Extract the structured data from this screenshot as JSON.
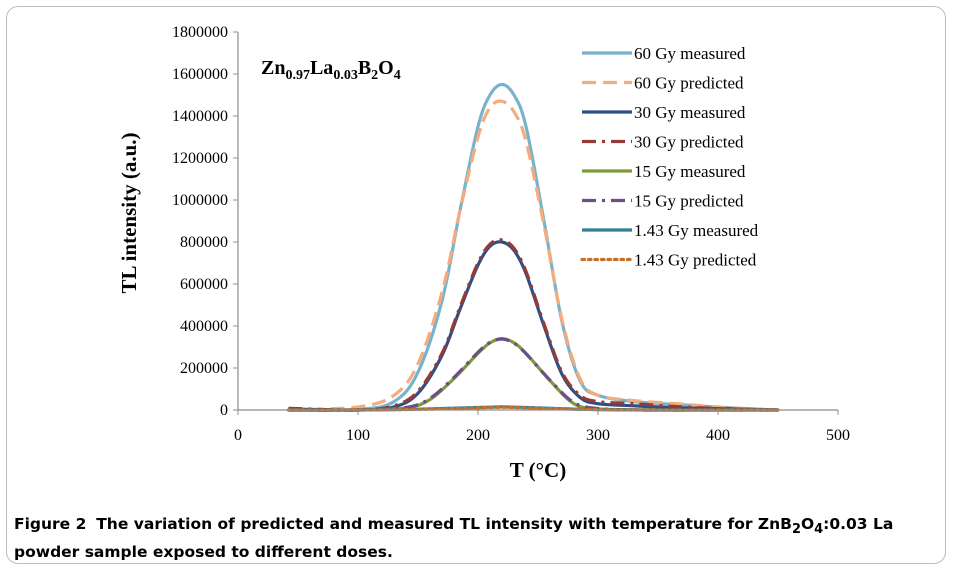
{
  "figure": {
    "label": "Figure 2",
    "caption_pre": "The variation of predicted and measured TL intensity with temperature for ZnB",
    "caption_sub1": "2",
    "caption_mid": "O",
    "caption_sub2": "4",
    "caption_post": ":0.03 La powder sample exposed to different doses."
  },
  "chart_data": {
    "type": "line",
    "title": "",
    "annotation": {
      "parts": [
        {
          "text": "Zn",
          "sub": false
        },
        {
          "text": "0.97",
          "sub": true
        },
        {
          "text": "La",
          "sub": false
        },
        {
          "text": "0.03",
          "sub": true
        },
        {
          "text": "B",
          "sub": false
        },
        {
          "text": "2",
          "sub": true
        },
        {
          "text": "O",
          "sub": false
        },
        {
          "text": "4",
          "sub": true
        }
      ]
    },
    "xlabel": "T (°C)",
    "ylabel": "TL intensity (a.u.)",
    "xlim": [
      0,
      500
    ],
    "ylim": [
      0,
      1800000
    ],
    "xticks": [
      "0",
      "100",
      "200",
      "300",
      "400",
      "500"
    ],
    "yticks": [
      "0",
      "200000",
      "400000",
      "600000",
      "800000",
      "1000000",
      "1200000",
      "1400000",
      "1600000",
      "1800000"
    ],
    "legend_position": "top-right",
    "grid": false,
    "series": [
      {
        "name": "60 Gy measured",
        "color": "#78b3cc",
        "dash": "solid",
        "x": [
          42,
          100,
          130,
          150,
          170,
          185,
          200,
          210,
          220,
          230,
          240,
          255,
          270,
          285,
          300,
          330,
          370,
          410,
          450
        ],
        "y": [
          0,
          3000,
          40000,
          180000,
          520000,
          950000,
          1350000,
          1500000,
          1550000,
          1500000,
          1350000,
          900000,
          420000,
          140000,
          70000,
          40000,
          25000,
          10000,
          0
        ]
      },
      {
        "name": "60 Gy predicted",
        "color": "#f5ab7c",
        "dash": "dashed",
        "x": [
          42,
          100,
          130,
          150,
          170,
          185,
          200,
          210,
          220,
          230,
          240,
          255,
          270,
          285,
          300,
          330,
          370,
          410,
          450
        ],
        "y": [
          0,
          15000,
          70000,
          220000,
          560000,
          950000,
          1300000,
          1440000,
          1470000,
          1420000,
          1280000,
          880000,
          430000,
          150000,
          70000,
          45000,
          28000,
          10000,
          0
        ]
      },
      {
        "name": "30 Gy measured",
        "color": "#2e4f86",
        "dash": "solid",
        "x": [
          42,
          100,
          130,
          150,
          170,
          185,
          200,
          210,
          220,
          230,
          240,
          255,
          270,
          285,
          300,
          330,
          370,
          410,
          450
        ],
        "y": [
          5000,
          0,
          15000,
          80000,
          260000,
          480000,
          690000,
          780000,
          800000,
          760000,
          650000,
          400000,
          170000,
          60000,
          30000,
          20000,
          10000,
          5000,
          0
        ]
      },
      {
        "name": "30 Gy predicted",
        "color": "#963a36",
        "dash": "dashdot",
        "x": [
          42,
          100,
          130,
          150,
          170,
          185,
          200,
          210,
          220,
          230,
          240,
          255,
          270,
          285,
          300,
          330,
          370,
          410,
          450
        ],
        "y": [
          8000,
          0,
          20000,
          90000,
          270000,
          490000,
          700000,
          790000,
          810000,
          770000,
          660000,
          410000,
          180000,
          70000,
          40000,
          30000,
          15000,
          5000,
          0
        ]
      },
      {
        "name": "15 Gy measured",
        "color": "#7c9c3b",
        "dash": "solid",
        "x": [
          42,
          100,
          140,
          160,
          180,
          200,
          210,
          220,
          230,
          240,
          260,
          280,
          300,
          340,
          400,
          450
        ],
        "y": [
          0,
          0,
          10000,
          50000,
          150000,
          270000,
          320000,
          340000,
          320000,
          270000,
          140000,
          30000,
          5000,
          0,
          0,
          0
        ]
      },
      {
        "name": "15 Gy predicted",
        "color": "#6c4e88",
        "dash": "dashdot",
        "x": [
          42,
          100,
          140,
          160,
          180,
          200,
          210,
          220,
          230,
          240,
          260,
          280,
          300,
          340,
          400,
          450
        ],
        "y": [
          0,
          0,
          12000,
          55000,
          155000,
          275000,
          322000,
          338000,
          318000,
          268000,
          142000,
          35000,
          7000,
          0,
          0,
          0
        ]
      },
      {
        "name": "1.43 Gy measured",
        "color": "#2f7f95",
        "dash": "solid",
        "x": [
          42,
          100,
          150,
          200,
          220,
          240,
          290,
          350,
          450
        ],
        "y": [
          0,
          0,
          4000,
          12000,
          15000,
          12000,
          3000,
          0,
          0
        ]
      },
      {
        "name": "1.43 Gy predicted",
        "color": "#c5702b",
        "dash": "dotted",
        "x": [
          42,
          100,
          150,
          200,
          220,
          240,
          290,
          350,
          450
        ],
        "y": [
          0,
          0,
          3000,
          10000,
          13000,
          10000,
          3000,
          0,
          0
        ]
      }
    ]
  }
}
